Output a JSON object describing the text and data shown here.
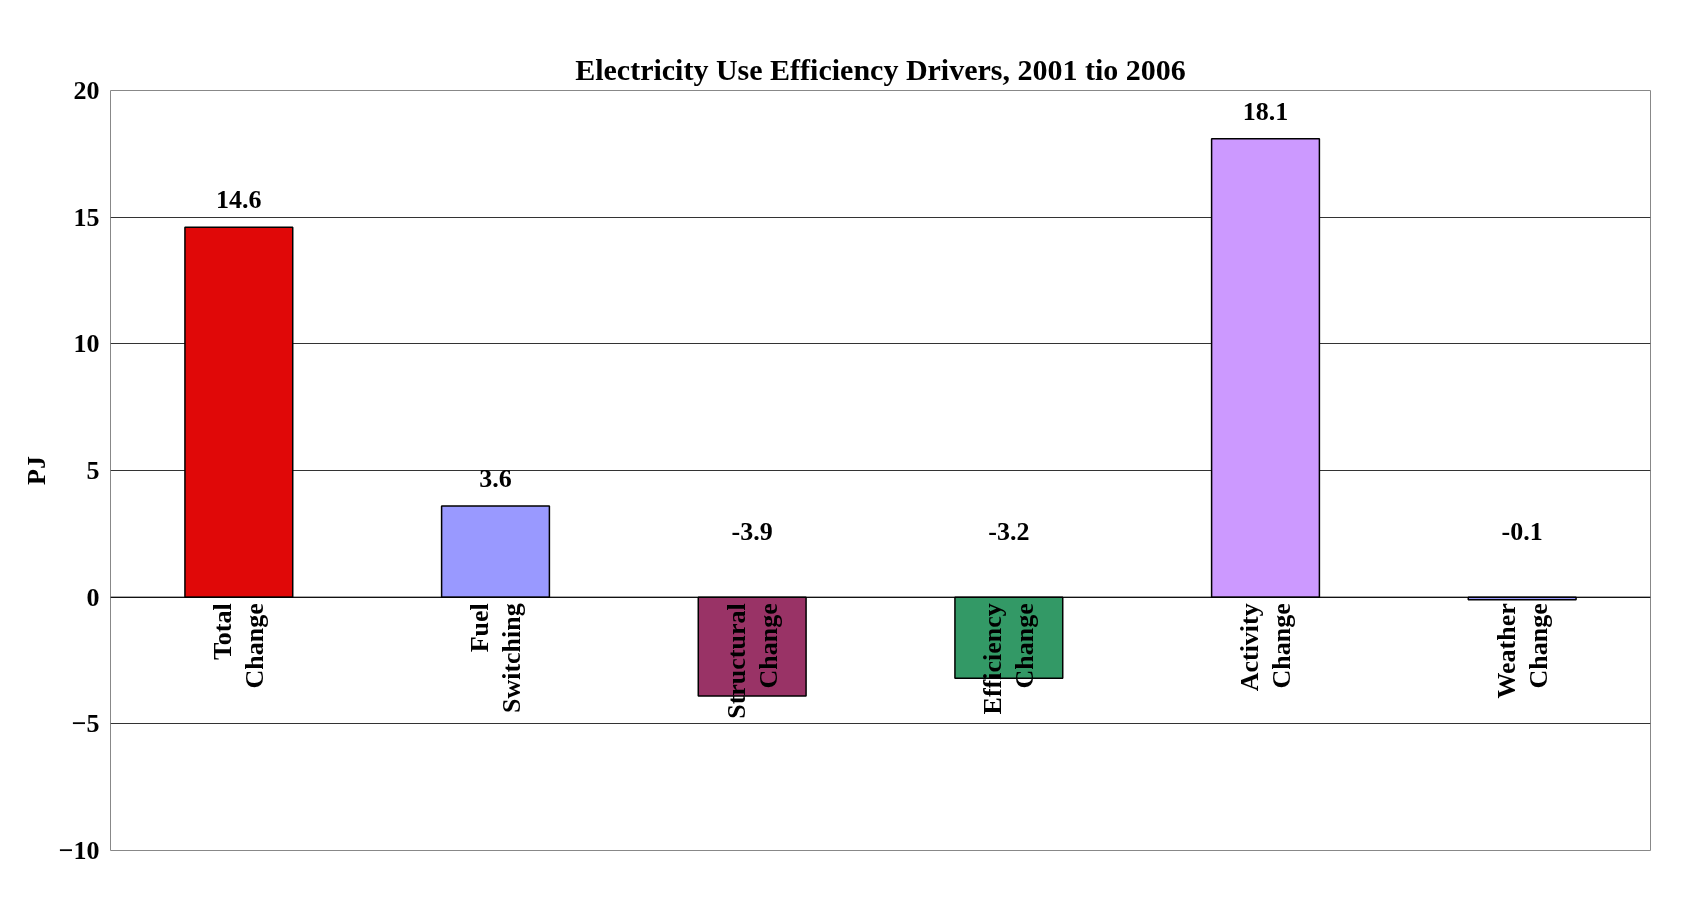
{
  "chart_data": {
    "type": "bar",
    "title": "Electricity Use Efficiency Drivers, 2001 tio 2006",
    "ylabel": "PJ",
    "categories": [
      "Total Change",
      "Fuel Switching",
      "Structural Change",
      "Efficiency Change",
      "Activity Change",
      "Weather Change"
    ],
    "values": [
      14.6,
      3.6,
      -3.9,
      -3.2,
      18.1,
      -0.1
    ],
    "colors": [
      "#e00808",
      "#9999ff",
      "#993366",
      "#339966",
      "#cc99ff",
      "#9999ff"
    ],
    "ylim": [
      -10,
      20
    ],
    "yticks": [
      -10,
      -5,
      0,
      5,
      10,
      15,
      20
    ],
    "grid": "y",
    "data_labels": true
  }
}
